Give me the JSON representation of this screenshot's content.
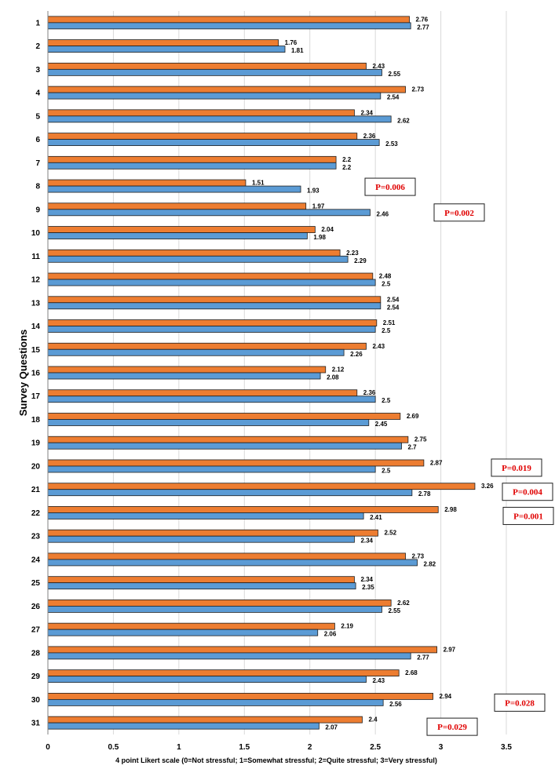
{
  "chart_data": {
    "type": "bar",
    "orientation": "horizontal",
    "ylabel": "Survey Questions",
    "xlabel": "4 point Likert scale (0=Not stressful; 1=Somewhat stressful; 2=Quite stressful; 3=Very stressful)",
    "xlim": [
      0,
      3.5
    ],
    "xticks": [
      "0",
      "0.5",
      "1",
      "1.5",
      "2",
      "2.5",
      "3",
      "3.5"
    ],
    "grid": "vertical",
    "colors": {
      "series1": "#ED7D31",
      "series2": "#5B9BD5"
    },
    "categories": [
      "1",
      "2",
      "3",
      "4",
      "5",
      "6",
      "7",
      "8",
      "9",
      "10",
      "11",
      "12",
      "13",
      "14",
      "15",
      "16",
      "17",
      "18",
      "19",
      "20",
      "21",
      "22",
      "23",
      "24",
      "25",
      "26",
      "27",
      "28",
      "29",
      "30",
      "31"
    ],
    "series": [
      {
        "values": [
          2.76,
          1.76,
          2.43,
          2.73,
          2.34,
          2.36,
          2.2,
          1.51,
          1.97,
          2.04,
          2.23,
          2.48,
          2.54,
          2.51,
          2.43,
          2.12,
          2.36,
          2.69,
          2.75,
          2.87,
          3.26,
          2.98,
          2.52,
          2.73,
          2.34,
          2.62,
          2.19,
          2.97,
          2.68,
          2.94,
          2.4
        ],
        "labels": [
          "2.76",
          "1.76",
          "2.43",
          "2.73",
          "2.34",
          "2.36",
          "2.2",
          "1.51",
          "1.97",
          "2.04",
          "2.23",
          "2.48",
          "2.54",
          "2.51",
          "2.43",
          "2.12",
          "2.36",
          "2.69",
          "2.75",
          "2.87",
          "3.26",
          "2.98",
          "2.52",
          "2.73",
          "2.34",
          "2.62",
          "2.19",
          "2.97",
          "2.68",
          "2.94",
          "2.4"
        ]
      },
      {
        "values": [
          2.77,
          1.81,
          2.55,
          2.54,
          2.62,
          2.53,
          2.2,
          1.93,
          2.46,
          1.98,
          2.29,
          2.5,
          2.54,
          2.5,
          2.26,
          2.08,
          2.5,
          2.45,
          2.7,
          2.5,
          2.78,
          2.41,
          2.34,
          2.82,
          2.35,
          2.55,
          2.06,
          2.77,
          2.43,
          2.56,
          2.07
        ],
        "labels": [
          "2.77",
          "1.81",
          "2.55",
          "2.54",
          "2.62",
          "2.53",
          "2.2",
          "1.93",
          "2.46",
          "1.98",
          "2.29",
          "2.5",
          "2.54",
          "2.5",
          "2.26",
          "2.08",
          "2.5",
          "2.45",
          "2.7",
          "2.5",
          "2.78",
          "2.41",
          "2.34",
          "2.82",
          "2.35",
          "2.55",
          "2.06",
          "2.77",
          "2.43",
          "2.56",
          "2.07"
        ]
      }
    ],
    "annotations": [
      {
        "question": "8",
        "text": "P=0.006"
      },
      {
        "question": "9",
        "text": "P=0.002"
      },
      {
        "question": "20",
        "text": "P=0.019"
      },
      {
        "question": "21",
        "text": "P=0.004"
      },
      {
        "question": "22",
        "text": "P=0.001"
      },
      {
        "question": "30",
        "text": "P=0.028"
      },
      {
        "question": "31",
        "text": "P=0.029"
      }
    ]
  }
}
